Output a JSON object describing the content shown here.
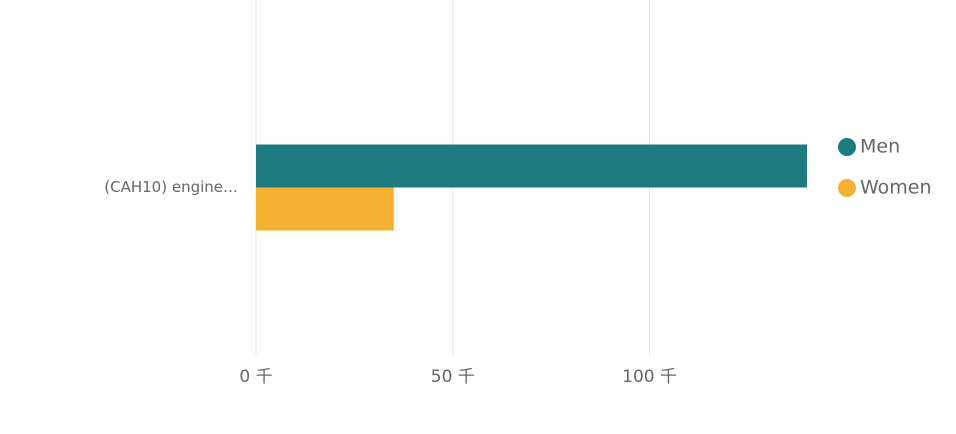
{
  "chart_data": {
    "type": "hbar",
    "categories": [
      "(CAH10) engine…"
    ],
    "series": [
      {
        "name": "Men",
        "color": "#1d7a80",
        "values": [
          140000
        ]
      },
      {
        "name": "Women",
        "color": "#f5b132",
        "values": [
          35000
        ]
      }
    ],
    "xlim": [
      0,
      140000
    ],
    "xticks": [
      {
        "value": 0,
        "label": "0 千"
      },
      {
        "value": 50000,
        "label": "50 千"
      },
      {
        "value": 100000,
        "label": "100 千"
      }
    ],
    "grid": true,
    "legend": "right"
  }
}
